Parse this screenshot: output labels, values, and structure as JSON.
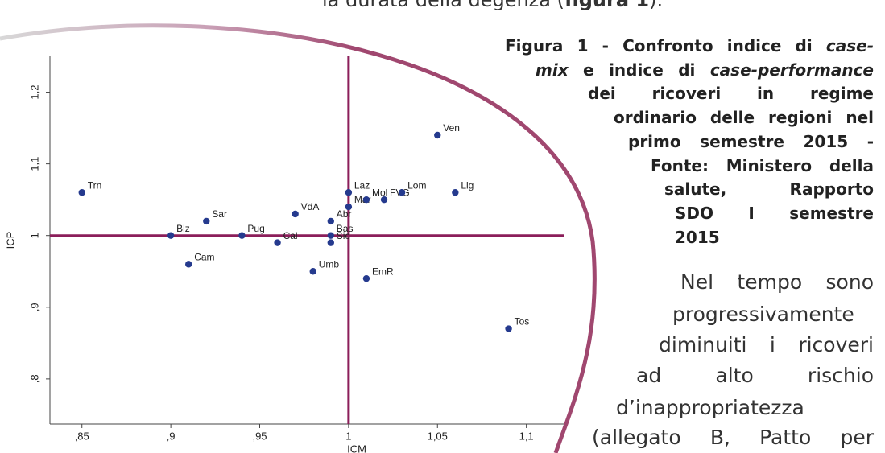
{
  "top_text": [
    {
      "text": "la durata della degenza ("
    },
    {
      "text": "figura 1",
      "bold": true
    },
    {
      "text": ")."
    }
  ],
  "caption": [
    [
      {
        "text": "Figura 1 - Confronto indice di "
      },
      {
        "text": "case-",
        "italic": true
      }
    ],
    [
      {
        "text": "mix",
        "italic": true
      },
      {
        "text": " e indice di "
      },
      {
        "text": "case-performance",
        "italic": true
      }
    ],
    [
      {
        "text": "dei ricoveri in regime"
      }
    ],
    [
      {
        "text": "ordinario delle regioni nel"
      }
    ],
    [
      {
        "text": "primo semestre 2015 -"
      }
    ],
    [
      {
        "text": "Fonte: Ministero della"
      }
    ],
    [
      {
        "text": "salute, Rapporto"
      }
    ],
    [
      {
        "text": "SDO I semestre"
      }
    ],
    [
      {
        "text": "2015"
      }
    ]
  ],
  "body": [
    "Nel tempo sono",
    "progressivamente",
    "diminuiti i ricoveri",
    "ad alto rischio",
    "d’inappropriatezza",
    "(allegato B, Patto per"
  ],
  "chart_data": {
    "type": "scatter",
    "x_label": "ICM",
    "y_label": "ICP",
    "xlim": [
      0.832,
      1.121
    ],
    "ylim": [
      0.737,
      1.25
    ],
    "xticks": [
      {
        "value": 0.85,
        "label": ",85"
      },
      {
        "value": 0.9,
        "label": ",9"
      },
      {
        "value": 0.95,
        "label": ",95"
      },
      1,
      {
        "value": 1.05,
        "label": "1,05"
      },
      {
        "value": 1.1,
        "label": "1,1"
      }
    ],
    "yticks": [
      {
        "value": 0.8,
        "label": ",8"
      },
      {
        "value": 0.9,
        "label": ",9"
      },
      1,
      {
        "value": 1.1,
        "label": "1,1"
      },
      {
        "value": 1.2,
        "label": "1,2"
      }
    ],
    "reference_lines": {
      "x": 1,
      "y": 1,
      "color": "#8b1e5a"
    },
    "series": [
      {
        "color": "#253a8e",
        "point_labels": [
          "Trn",
          "Blz",
          "Sar",
          "Cam",
          "Pug",
          "Cal",
          "VdA",
          "Umb",
          "Abr",
          "Bas",
          "Sic",
          "Laz",
          "Mar",
          "Mol",
          "FVG",
          "Lom",
          "EmR",
          "Ven",
          "Lig",
          "Tos"
        ],
        "x": [
          0.85,
          0.9,
          0.92,
          0.91,
          0.94,
          0.96,
          0.97,
          0.98,
          0.99,
          0.99,
          0.99,
          1.0,
          1.0,
          1.01,
          1.02,
          1.03,
          1.01,
          1.05,
          1.06,
          1.09
        ],
        "values": [
          1.06,
          1.0,
          1.02,
          0.96,
          1.0,
          0.99,
          1.03,
          0.95,
          1.02,
          1.0,
          0.99,
          1.06,
          1.04,
          1.05,
          1.05,
          1.06,
          0.94,
          1.14,
          1.06,
          0.87
        ]
      }
    ]
  }
}
